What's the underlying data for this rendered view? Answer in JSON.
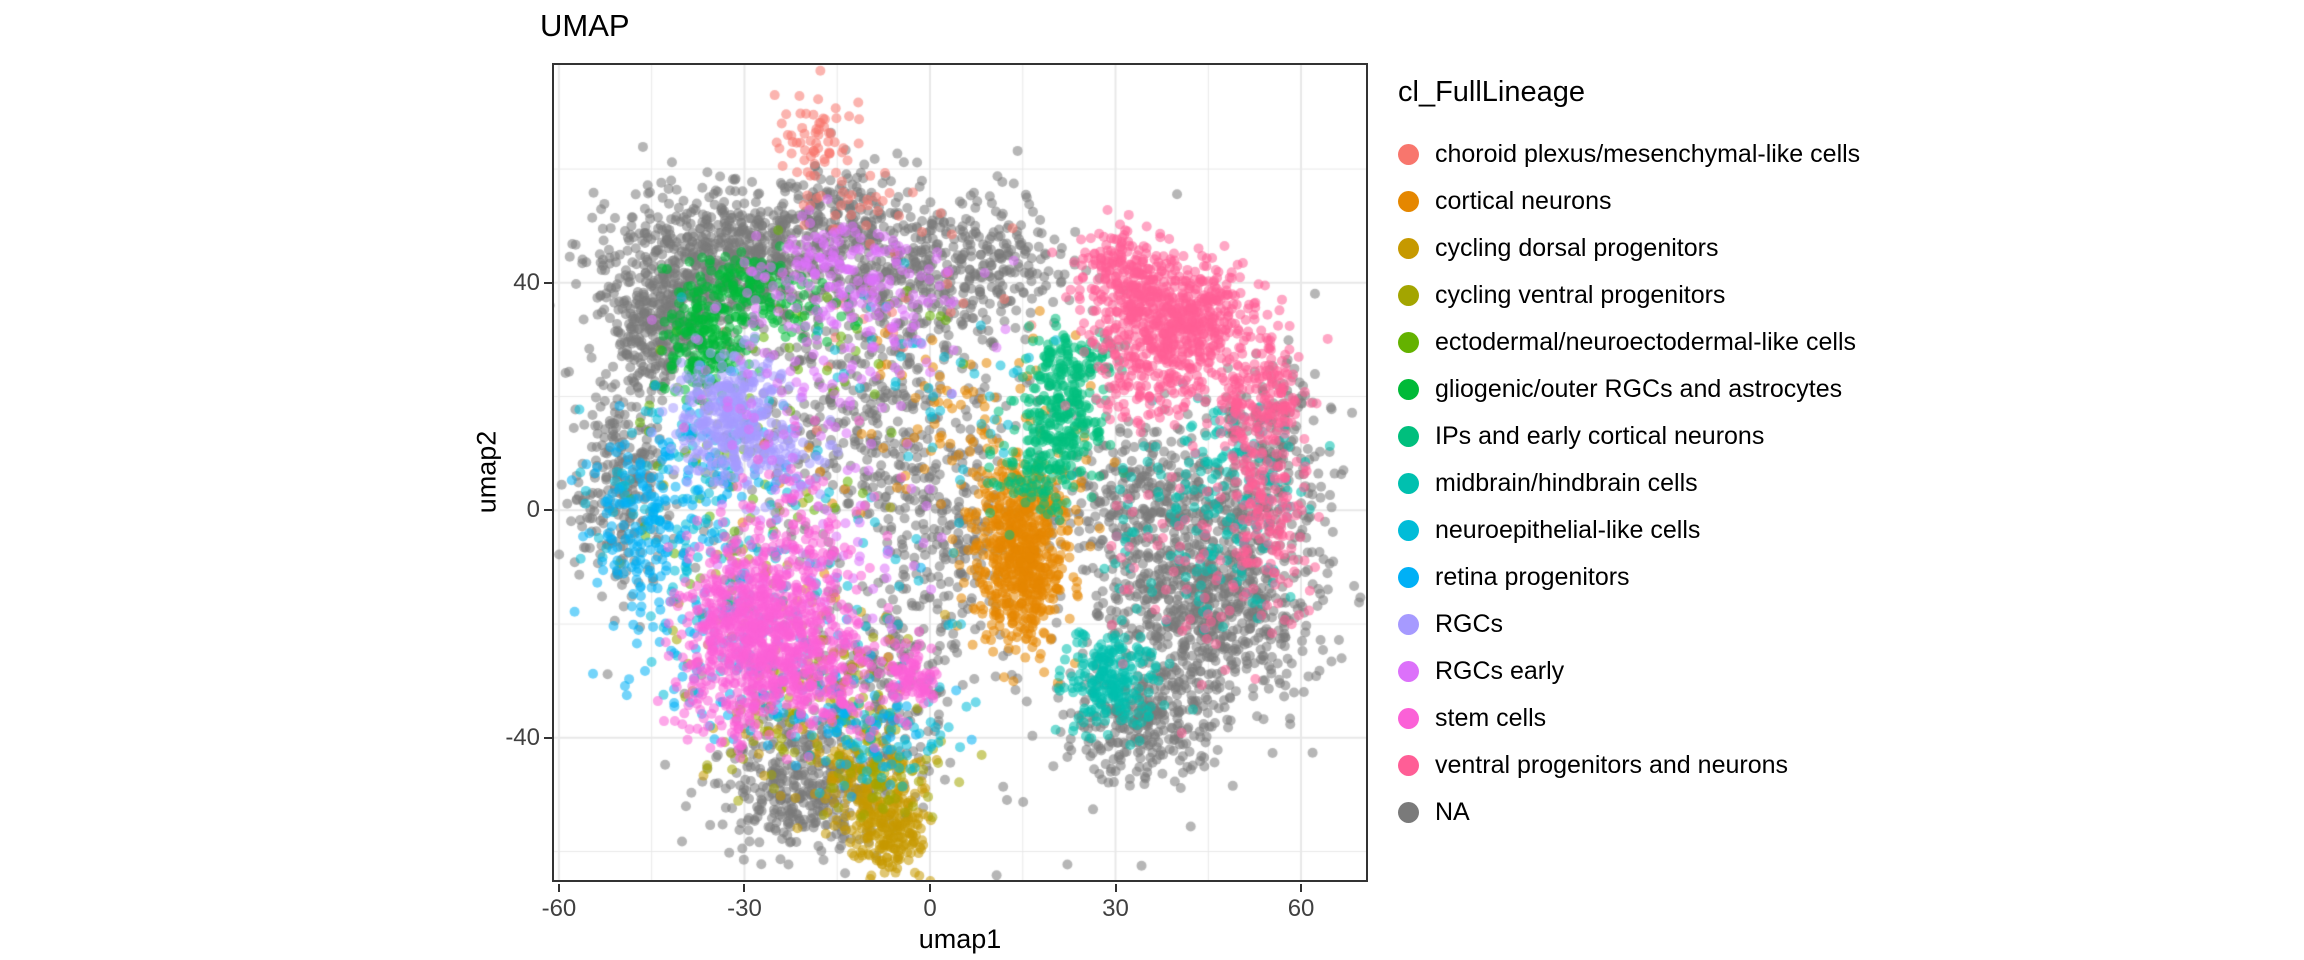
{
  "chart_data": {
    "type": "scatter",
    "title": "UMAP",
    "xlabel": "umap1",
    "ylabel": "umap2",
    "legend_title": "cl_FullLineage",
    "xlim": [
      -60.8,
      70.5
    ],
    "ylim": [
      -65.0,
      78.3
    ],
    "x_ticks": [
      -60,
      -30,
      0,
      30,
      60
    ],
    "y_ticks": [
      -40,
      0,
      40
    ],
    "x_minor_ticks": [
      -45,
      -15,
      15,
      45
    ],
    "y_minor_ticks": [
      -60,
      -20,
      20,
      60
    ],
    "grid": true,
    "legend_position": "right",
    "panel_border_color": "#333333",
    "grid_color": "#E8E8E8",
    "render": {
      "seed": 42,
      "point_radius": 5,
      "point_alpha": 0.55
    },
    "series": [
      {
        "label": "choroid plexus/mesenchymal-like cells",
        "color": "#F8766D",
        "clusters": [
          {
            "cx": -19,
            "cy": 65,
            "sdx": 3,
            "sdy": 3.5,
            "n": 60
          },
          {
            "cx": -12,
            "cy": 55,
            "sdx": 6,
            "sdy": 4,
            "n": 30
          },
          {
            "cx": 0,
            "cy": 38,
            "sdx": 16,
            "sdy": 10,
            "n": 25
          }
        ]
      },
      {
        "label": "cortical neurons",
        "color": "#E58700",
        "clusters": [
          {
            "cx": 15,
            "cy": -10,
            "sdx": 3.5,
            "sdy": 7,
            "n": 550
          },
          {
            "cx": 14,
            "cy": 1,
            "sdx": 4,
            "sdy": 4,
            "n": 150
          },
          {
            "cx": 8,
            "cy": 17,
            "sdx": 8,
            "sdy": 7,
            "n": 60
          },
          {
            "cx": -3,
            "cy": 0,
            "sdx": 14,
            "sdy": 14,
            "n": 40
          }
        ]
      },
      {
        "label": "cycling dorsal progenitors",
        "color": "#C69900",
        "clusters": [
          {
            "cx": -7,
            "cy": -55,
            "sdx": 3.5,
            "sdy": 4.5,
            "n": 260
          },
          {
            "cx": -12,
            "cy": -46,
            "sdx": 5,
            "sdy": 4,
            "n": 80
          },
          {
            "cx": -18,
            "cy": -32,
            "sdx": 8,
            "sdy": 8,
            "n": 50
          }
        ]
      },
      {
        "label": "cycling ventral progenitors",
        "color": "#A3A500",
        "clusters": [
          {
            "cx": -20,
            "cy": -36,
            "sdx": 9,
            "sdy": 7,
            "n": 90
          },
          {
            "cx": -6,
            "cy": -48,
            "sdx": 5,
            "sdy": 4,
            "n": 50
          },
          {
            "cx": -26,
            "cy": -16,
            "sdx": 10,
            "sdy": 8,
            "n": 40
          }
        ]
      },
      {
        "label": "ectodermal/neuroectodermal-like cells",
        "color": "#64B200",
        "clusters": [
          {
            "cx": -36,
            "cy": 10,
            "sdx": 7,
            "sdy": 8,
            "n": 40
          },
          {
            "cx": -15,
            "cy": 28,
            "sdx": 10,
            "sdy": 8,
            "n": 30
          },
          {
            "cx": -28,
            "cy": -5,
            "sdx": 10,
            "sdy": 10,
            "n": 25
          }
        ]
      },
      {
        "label": "gliogenic/outer RGCs and astrocytes",
        "color": "#00BA38",
        "clusters": [
          {
            "cx": -36,
            "cy": 30,
            "sdx": 3,
            "sdy": 5,
            "n": 220
          },
          {
            "cx": -30,
            "cy": 40,
            "sdx": 3.5,
            "sdy": 3,
            "n": 80
          },
          {
            "cx": -22,
            "cy": 36,
            "sdx": 5,
            "sdy": 3,
            "n": 50
          }
        ]
      },
      {
        "label": "IPs and early cortical neurons",
        "color": "#00BF7D",
        "clusters": [
          {
            "cx": 21,
            "cy": 16,
            "sdx": 3.5,
            "sdy": 6,
            "n": 260
          },
          {
            "cx": 24,
            "cy": 26,
            "sdx": 3,
            "sdy": 3,
            "n": 80
          },
          {
            "cx": 17,
            "cy": 5,
            "sdx": 4,
            "sdy": 4,
            "n": 70
          }
        ]
      },
      {
        "label": "midbrain/hindbrain cells",
        "color": "#00C0AF",
        "clusters": [
          {
            "cx": 29,
            "cy": -30,
            "sdx": 3.5,
            "sdy": 4,
            "n": 220
          },
          {
            "cx": 44,
            "cy": -5,
            "sdx": 8,
            "sdy": 10,
            "n": 120
          },
          {
            "cx": 50,
            "cy": 8,
            "sdx": 5,
            "sdy": 6,
            "n": 60
          }
        ]
      },
      {
        "label": "neuroepithelial-like cells",
        "color": "#00BCD8",
        "clusters": [
          {
            "cx": -27,
            "cy": -10,
            "sdx": 13,
            "sdy": 13,
            "n": 130
          },
          {
            "cx": -8,
            "cy": -40,
            "sdx": 6,
            "sdy": 4,
            "n": 70
          },
          {
            "cx": -42,
            "cy": 5,
            "sdx": 5,
            "sdy": 8,
            "n": 60
          },
          {
            "cx": 0,
            "cy": 25,
            "sdx": 8,
            "sdy": 8,
            "n": 40
          }
        ]
      },
      {
        "label": "retina progenitors",
        "color": "#00B0F6",
        "clusters": [
          {
            "cx": -47,
            "cy": -5,
            "sdx": 4,
            "sdy": 8,
            "n": 140
          },
          {
            "cx": -32,
            "cy": -25,
            "sdx": 8,
            "sdy": 7,
            "n": 100
          },
          {
            "cx": -37,
            "cy": 8,
            "sdx": 7,
            "sdy": 7,
            "n": 80
          },
          {
            "cx": -15,
            "cy": -35,
            "sdx": 8,
            "sdy": 6,
            "n": 60
          }
        ]
      },
      {
        "label": "RGCs",
        "color": "#A69AFF",
        "clusters": [
          {
            "cx": -32,
            "cy": 17,
            "sdx": 4.5,
            "sdy": 5.5,
            "n": 320
          },
          {
            "cx": -27,
            "cy": 8,
            "sdx": 5,
            "sdy": 4,
            "n": 90
          }
        ]
      },
      {
        "label": "RGCs early",
        "color": "#DC71FA",
        "clusters": [
          {
            "cx": -16,
            "cy": 43,
            "sdx": 6,
            "sdy": 5,
            "n": 130
          },
          {
            "cx": -8,
            "cy": 33,
            "sdx": 8,
            "sdy": 7,
            "n": 90
          },
          {
            "cx": -22,
            "cy": 20,
            "sdx": 9,
            "sdy": 9,
            "n": 70
          },
          {
            "cx": -18,
            "cy": -8,
            "sdx": 10,
            "sdy": 8,
            "n": 50
          }
        ]
      },
      {
        "label": "stem cells",
        "color": "#FB61D7",
        "clusters": [
          {
            "cx": -27,
            "cy": -21,
            "sdx": 6.5,
            "sdy": 7,
            "n": 750
          },
          {
            "cx": -16,
            "cy": -30,
            "sdx": 5,
            "sdy": 5,
            "n": 150
          },
          {
            "cx": -3,
            "cy": -29,
            "sdx": 2,
            "sdy": 2.5,
            "n": 90
          },
          {
            "cx": -22,
            "cy": -5,
            "sdx": 8,
            "sdy": 7,
            "n": 120
          },
          {
            "cx": -33,
            "cy": -33,
            "sdx": 5,
            "sdy": 4,
            "n": 80
          }
        ]
      },
      {
        "label": "ventral progenitors and neurons",
        "color": "#FF5E96",
        "clusters": [
          {
            "cx": 40,
            "cy": 33,
            "sdx": 7,
            "sdy": 5.5,
            "n": 650
          },
          {
            "cx": 31,
            "cy": 42,
            "sdx": 4,
            "sdy": 4,
            "n": 150
          },
          {
            "cx": 53,
            "cy": 18,
            "sdx": 4,
            "sdy": 6,
            "n": 180
          },
          {
            "cx": 55,
            "cy": 0,
            "sdx": 3.5,
            "sdy": 8,
            "n": 120
          },
          {
            "cx": 45,
            "cy": -10,
            "sdx": 8,
            "sdy": 10,
            "n": 80
          },
          {
            "cx": 36,
            "cy": 22,
            "sdx": 5,
            "sdy": 5,
            "n": 100
          }
        ]
      },
      {
        "label": "NA",
        "color": "#7A7A7A",
        "clusters": [
          {
            "cx": -33,
            "cy": 44,
            "sdx": 9,
            "sdy": 6,
            "n": 700
          },
          {
            "cx": -44,
            "cy": 32,
            "sdx": 5,
            "sdy": 6,
            "n": 300
          },
          {
            "cx": -14,
            "cy": 50,
            "sdx": 7,
            "sdy": 5,
            "n": 250
          },
          {
            "cx": -2,
            "cy": 40,
            "sdx": 7,
            "sdy": 6,
            "n": 220
          },
          {
            "cx": 10,
            "cy": 45,
            "sdx": 6,
            "sdy": 6,
            "n": 180
          },
          {
            "cx": -50,
            "cy": 5,
            "sdx": 4,
            "sdy": 10,
            "n": 250
          },
          {
            "cx": -10,
            "cy": 15,
            "sdx": 10,
            "sdy": 12,
            "n": 350
          },
          {
            "cx": -20,
            "cy": -45,
            "sdx": 8,
            "sdy": 6,
            "n": 280
          },
          {
            "cx": -20,
            "cy": -52,
            "sdx": 6,
            "sdy": 4,
            "n": 150
          },
          {
            "cx": -8,
            "cy": -28,
            "sdx": 6,
            "sdy": 8,
            "n": 150
          },
          {
            "cx": 45,
            "cy": -15,
            "sdx": 9,
            "sdy": 11,
            "n": 900
          },
          {
            "cx": 34,
            "cy": -38,
            "sdx": 6,
            "sdy": 5,
            "n": 250
          },
          {
            "cx": 55,
            "cy": 10,
            "sdx": 5,
            "sdy": 8,
            "n": 200
          },
          {
            "cx": 35,
            "cy": 3,
            "sdx": 6,
            "sdy": 6,
            "n": 200
          },
          {
            "cx": 3,
            "cy": -5,
            "sdx": 6,
            "sdy": 10,
            "n": 150
          },
          {
            "cx": 0,
            "cy": 0,
            "sdx": 28,
            "sdy": 28,
            "n": 250
          }
        ]
      }
    ]
  }
}
